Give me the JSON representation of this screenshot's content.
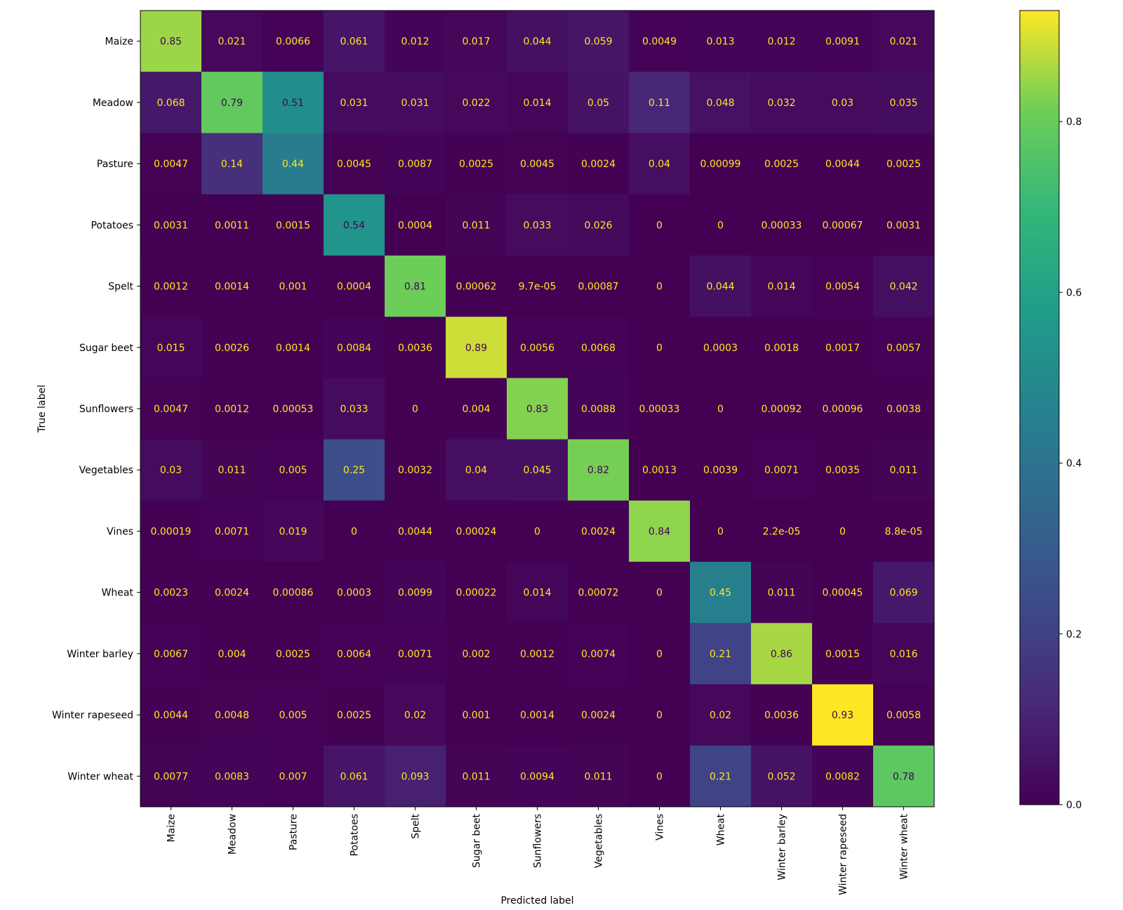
{
  "chart_data": {
    "type": "heatmap",
    "title": "",
    "xlabel": "Predicted label",
    "ylabel": "True label",
    "colormap": "viridis",
    "categories": [
      "Maize",
      "Meadow",
      "Pasture",
      "Potatoes",
      "Spelt",
      "Sugar beet",
      "Sunflowers",
      "Vegetables",
      "Vines",
      "Wheat",
      "Winter barley",
      "Winter rapeseed",
      "Winter wheat"
    ],
    "cell_labels": [
      [
        "0.85",
        "0.021",
        "0.0066",
        "0.061",
        "0.012",
        "0.017",
        "0.044",
        "0.059",
        "0.0049",
        "0.013",
        "0.012",
        "0.0091",
        "0.021"
      ],
      [
        "0.068",
        "0.79",
        "0.51",
        "0.031",
        "0.031",
        "0.022",
        "0.014",
        "0.05",
        "0.11",
        "0.048",
        "0.032",
        "0.03",
        "0.035"
      ],
      [
        "0.0047",
        "0.14",
        "0.44",
        "0.0045",
        "0.0087",
        "0.0025",
        "0.0045",
        "0.0024",
        "0.04",
        "0.00099",
        "0.0025",
        "0.0044",
        "0.0025"
      ],
      [
        "0.0031",
        "0.0011",
        "0.0015",
        "0.54",
        "0.0004",
        "0.011",
        "0.033",
        "0.026",
        "0",
        "0",
        "0.00033",
        "0.00067",
        "0.0031"
      ],
      [
        "0.0012",
        "0.0014",
        "0.001",
        "0.0004",
        "0.81",
        "0.00062",
        "9.7e-05",
        "0.00087",
        "0",
        "0.044",
        "0.014",
        "0.0054",
        "0.042"
      ],
      [
        "0.015",
        "0.0026",
        "0.0014",
        "0.0084",
        "0.0036",
        "0.89",
        "0.0056",
        "0.0068",
        "0",
        "0.0003",
        "0.0018",
        "0.0017",
        "0.0057"
      ],
      [
        "0.0047",
        "0.0012",
        "0.00053",
        "0.033",
        "0",
        "0.004",
        "0.83",
        "0.0088",
        "0.00033",
        "0",
        "0.00092",
        "0.00096",
        "0.0038"
      ],
      [
        "0.03",
        "0.011",
        "0.005",
        "0.25",
        "0.0032",
        "0.04",
        "0.045",
        "0.82",
        "0.0013",
        "0.0039",
        "0.0071",
        "0.0035",
        "0.011"
      ],
      [
        "0.00019",
        "0.0071",
        "0.019",
        "0",
        "0.0044",
        "0.00024",
        "0",
        "0.0024",
        "0.84",
        "0",
        "2.2e-05",
        "0",
        "8.8e-05"
      ],
      [
        "0.0023",
        "0.0024",
        "0.00086",
        "0.0003",
        "0.0099",
        "0.00022",
        "0.014",
        "0.00072",
        "0",
        "0.45",
        "0.011",
        "0.00045",
        "0.069"
      ],
      [
        "0.0067",
        "0.004",
        "0.0025",
        "0.0064",
        "0.0071",
        "0.002",
        "0.0012",
        "0.0074",
        "0",
        "0.21",
        "0.86",
        "0.0015",
        "0.016"
      ],
      [
        "0.0044",
        "0.0048",
        "0.005",
        "0.0025",
        "0.02",
        "0.001",
        "0.0014",
        "0.0024",
        "0",
        "0.02",
        "0.0036",
        "0.93",
        "0.0058"
      ],
      [
        "0.0077",
        "0.0083",
        "0.007",
        "0.061",
        "0.093",
        "0.011",
        "0.0094",
        "0.011",
        "0",
        "0.21",
        "0.052",
        "0.0082",
        "0.78"
      ]
    ],
    "colorbar": {
      "range": [
        0,
        0.93
      ],
      "ticks": [
        0.0,
        0.2,
        0.4,
        0.6,
        0.8
      ],
      "tick_labels": [
        "0.0",
        "0.2",
        "0.4",
        "0.6",
        "0.8"
      ]
    },
    "grid": false,
    "legend": "colorbar-right"
  }
}
